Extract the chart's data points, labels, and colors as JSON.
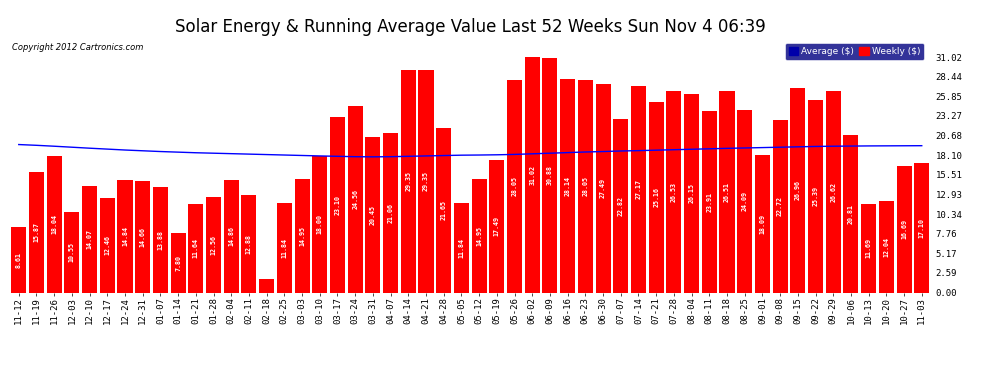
{
  "title": "Solar Energy & Running Average Value Last 52 Weeks Sun Nov 4 06:39",
  "copyright": "Copyright 2012 Cartronics.com",
  "yticks_right": [
    0.0,
    2.59,
    5.17,
    7.76,
    10.34,
    12.93,
    15.51,
    18.1,
    20.68,
    23.27,
    25.85,
    28.44,
    31.02
  ],
  "bar_color": "#ff0000",
  "line_color": "#0000ff",
  "background_color": "#ffffff",
  "plot_bg_color": "#ffffff",
  "grid_color": "#bbbbbb",
  "legend_avg_color": "#0000aa",
  "legend_weekly_color": "#ff0000",
  "categories": [
    "11-12",
    "11-19",
    "11-26",
    "12-03",
    "12-10",
    "12-17",
    "12-24",
    "12-31",
    "01-07",
    "01-14",
    "01-21",
    "01-28",
    "02-04",
    "02-11",
    "02-18",
    "02-25",
    "03-03",
    "03-10",
    "03-17",
    "03-24",
    "03-31",
    "04-07",
    "04-14",
    "04-21",
    "04-28",
    "05-05",
    "05-12",
    "05-19",
    "05-26",
    "06-02",
    "06-09",
    "06-16",
    "06-23",
    "06-30",
    "07-07",
    "07-14",
    "07-21",
    "07-28",
    "08-04",
    "08-11",
    "08-18",
    "08-25",
    "09-01",
    "09-08",
    "09-15",
    "09-22",
    "09-29",
    "10-06",
    "10-13",
    "10-20",
    "10-27",
    "11-03"
  ],
  "weekly_values": [
    8.61,
    15.87,
    18.04,
    10.55,
    14.07,
    12.46,
    14.84,
    14.66,
    13.88,
    7.8,
    11.64,
    12.56,
    14.86,
    12.88,
    1.8,
    11.84,
    14.95,
    18.0,
    23.1,
    24.56,
    20.45,
    21.06,
    29.35,
    29.35,
    21.65,
    11.84,
    14.95,
    17.49,
    28.05,
    31.02,
    30.88,
    28.14,
    28.05,
    27.49,
    22.82,
    27.17,
    25.16,
    26.53,
    26.15,
    23.91,
    26.51,
    24.09,
    18.09,
    22.72,
    26.96,
    25.39,
    26.62,
    20.81,
    11.69,
    12.04,
    16.69,
    17.1
  ],
  "avg_values": [
    19.5,
    19.4,
    19.28,
    19.15,
    19.02,
    18.9,
    18.78,
    18.68,
    18.58,
    18.5,
    18.42,
    18.36,
    18.3,
    18.24,
    18.18,
    18.12,
    18.06,
    18.0,
    17.95,
    17.9,
    17.88,
    17.9,
    17.95,
    18.0,
    18.05,
    18.1,
    18.12,
    18.15,
    18.2,
    18.28,
    18.36,
    18.44,
    18.52,
    18.58,
    18.65,
    18.7,
    18.76,
    18.82,
    18.88,
    18.94,
    19.0,
    19.05,
    19.1,
    19.15,
    19.2,
    19.25,
    19.28,
    19.3,
    19.32,
    19.33,
    19.34,
    19.35
  ],
  "ylim": [
    0,
    33.61
  ],
  "title_fontsize": 12,
  "tick_fontsize": 6.5,
  "label_fontsize": 4.8,
  "bar_width": 0.85
}
